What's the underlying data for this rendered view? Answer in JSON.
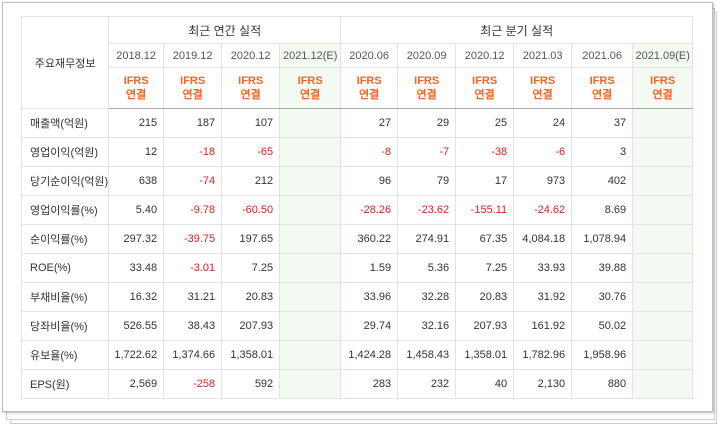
{
  "table": {
    "header_label": "주요재무정보",
    "annual_title": "최근 연간 실적",
    "quarter_title": "최근 분기 실적",
    "periods": [
      "2018.12",
      "2019.12",
      "2020.12",
      "2021.12(E)",
      "2020.06",
      "2020.09",
      "2020.12",
      "2021.03",
      "2021.06",
      "2021.09(E)"
    ],
    "accounting": [
      "IFRS\n연결",
      "IFRS\n연결",
      "IFRS\n연결",
      "IFRS\n연결",
      "IFRS\n연결",
      "IFRS\n연결",
      "IFRS\n연결",
      "IFRS\n연결",
      "IFRS\n연결",
      "IFRS\n연결"
    ],
    "rows": [
      {
        "label": "매출액(억원)",
        "values": [
          "215",
          "187",
          "107",
          "",
          "27",
          "29",
          "25",
          "24",
          "37",
          ""
        ]
      },
      {
        "label": "영업이익(억원)",
        "values": [
          "12",
          "-18",
          "-65",
          "",
          "-8",
          "-7",
          "-38",
          "-6",
          "3",
          ""
        ]
      },
      {
        "label": "당기순이익(억원)",
        "values": [
          "638",
          "-74",
          "212",
          "",
          "96",
          "79",
          "17",
          "973",
          "402",
          ""
        ]
      },
      {
        "label": "영업이익률(%)",
        "values": [
          "5.40",
          "-9.78",
          "-60.50",
          "",
          "-28.26",
          "-23.62",
          "-155.11",
          "-24.62",
          "8.69",
          ""
        ]
      },
      {
        "label": "순이익률(%)",
        "values": [
          "297.32",
          "-39.75",
          "197.65",
          "",
          "360.22",
          "274.91",
          "67.35",
          "4,084.18",
          "1,078.94",
          ""
        ]
      },
      {
        "label": "ROE(%)",
        "values": [
          "33.48",
          "-3.01",
          "7.25",
          "",
          "1.59",
          "5.36",
          "7.25",
          "33.93",
          "39.88",
          ""
        ]
      },
      {
        "label": "부채비율(%)",
        "values": [
          "16.32",
          "31.21",
          "20.83",
          "",
          "33.96",
          "32.28",
          "20.83",
          "31.92",
          "30.76",
          ""
        ]
      },
      {
        "label": "당좌비율(%)",
        "values": [
          "526.55",
          "38.43",
          "207.93",
          "",
          "29.74",
          "32.16",
          "207.93",
          "161.92",
          "50.02",
          ""
        ]
      },
      {
        "label": "유보율(%)",
        "values": [
          "1,722.62",
          "1,374.66",
          "1,358.01",
          "",
          "1,424.28",
          "1,458.43",
          "1,358.01",
          "1,782.96",
          "1,958.96",
          ""
        ]
      },
      {
        "label": "EPS(원)",
        "values": [
          "2,569",
          "-258",
          "592",
          "",
          "283",
          "232",
          "40",
          "2,130",
          "880",
          ""
        ]
      }
    ]
  },
  "colors": {
    "accent": "#f26522",
    "negative": "#e02020",
    "estimate_bg": "#f3faf1",
    "estimate_text": "#2e8b2e"
  }
}
